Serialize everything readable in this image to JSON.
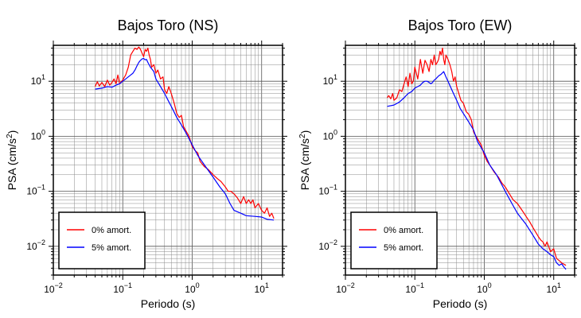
{
  "chart_data": [
    {
      "type": "line",
      "title": "Bajos Toro (NS)",
      "xlabel": "Periodo (s)",
      "ylabel_main": "PSA (cm/s",
      "ylabel_sup": "2",
      "ylabel_close": ")",
      "x_scale": "log",
      "y_scale": "log",
      "xlim": [
        0.01,
        20
      ],
      "ylim": [
        0.003,
        45
      ],
      "grid": true,
      "legend_position": "bottom-left",
      "x_ticks": [
        {
          "value": 0.01,
          "base": "10",
          "exp": "−2"
        },
        {
          "value": 0.1,
          "base": "10",
          "exp": "−1"
        },
        {
          "value": 1,
          "base": "10",
          "exp": "0"
        },
        {
          "value": 10,
          "base": "10",
          "exp": "1"
        }
      ],
      "y_ticks": [
        {
          "value": 0.01,
          "base": "10",
          "exp": "−2"
        },
        {
          "value": 0.1,
          "base": "10",
          "exp": "−1"
        },
        {
          "value": 1,
          "base": "10",
          "exp": "0"
        },
        {
          "value": 10,
          "base": "10",
          "exp": "1"
        }
      ],
      "series": [
        {
          "name": "0% amort.",
          "color": "#ff0000",
          "x": [
            0.04,
            0.043,
            0.046,
            0.05,
            0.055,
            0.06,
            0.065,
            0.07,
            0.075,
            0.08,
            0.085,
            0.09,
            0.1,
            0.11,
            0.12,
            0.13,
            0.14,
            0.15,
            0.16,
            0.17,
            0.18,
            0.19,
            0.2,
            0.21,
            0.22,
            0.23,
            0.24,
            0.25,
            0.26,
            0.28,
            0.3,
            0.32,
            0.35,
            0.38,
            0.4,
            0.43,
            0.46,
            0.5,
            0.55,
            0.6,
            0.65,
            0.7,
            0.75,
            0.8,
            0.9,
            1.0,
            1.1,
            1.2,
            1.3,
            1.5,
            1.7,
            2.0,
            2.3,
            2.6,
            3.0,
            3.3,
            3.6,
            4.0,
            4.5,
            5.0,
            5.5,
            6.0,
            6.5,
            7.0,
            7.5,
            8.0,
            9.0,
            10.0,
            11.0,
            12.0,
            13.0,
            14.0,
            15.0
          ],
          "y": [
            8,
            9.8,
            8.2,
            9.5,
            8,
            10.5,
            8.5,
            9.5,
            11,
            9,
            13,
            9,
            10.5,
            13,
            18,
            30,
            35,
            40,
            38,
            42,
            38,
            32,
            28,
            38,
            35,
            40,
            30,
            25,
            18,
            20,
            14,
            16,
            11,
            12,
            7,
            6,
            8,
            6,
            4,
            2.6,
            2.2,
            2.4,
            1.5,
            1.3,
            1.0,
            0.65,
            0.55,
            0.5,
            0.35,
            0.28,
            0.25,
            0.2,
            0.17,
            0.15,
            0.12,
            0.1,
            0.1,
            0.09,
            0.075,
            0.06,
            0.08,
            0.06,
            0.07,
            0.06,
            0.07,
            0.05,
            0.06,
            0.045,
            0.04,
            0.05,
            0.035,
            0.04,
            0.032
          ]
        },
        {
          "name": "5% amort.",
          "color": "#0000ff",
          "x": [
            0.04,
            0.05,
            0.06,
            0.07,
            0.08,
            0.09,
            0.1,
            0.11,
            0.12,
            0.13,
            0.14,
            0.15,
            0.16,
            0.17,
            0.18,
            0.19,
            0.2,
            0.21,
            0.22,
            0.23,
            0.25,
            0.28,
            0.3,
            0.35,
            0.4,
            0.45,
            0.5,
            0.6,
            0.7,
            0.8,
            1.0,
            1.2,
            1.5,
            2.0,
            2.5,
            3.0,
            3.5,
            4.0,
            5.0,
            6.0,
            8.0,
            10.0,
            12.0,
            15.0
          ],
          "y": [
            7.2,
            7.5,
            8,
            7.8,
            8.5,
            9,
            10,
            11,
            12,
            13,
            14,
            16,
            19,
            22,
            24,
            25.5,
            26,
            24.5,
            25,
            22,
            18,
            15,
            11,
            8,
            6,
            4.5,
            3.5,
            2.2,
            1.6,
            1.2,
            0.7,
            0.45,
            0.3,
            0.18,
            0.12,
            0.09,
            0.06,
            0.045,
            0.04,
            0.036,
            0.035,
            0.034,
            0.031,
            0.03
          ]
        }
      ]
    },
    {
      "type": "line",
      "title": "Bajos Toro (EW)",
      "xlabel": "Periodo (s)",
      "ylabel_main": "PSA (cm/s",
      "ylabel_sup": "2",
      "ylabel_close": ")",
      "x_scale": "log",
      "y_scale": "log",
      "xlim": [
        0.01,
        20
      ],
      "ylim": [
        0.003,
        45
      ],
      "grid": true,
      "legend_position": "bottom-left",
      "x_ticks": [
        {
          "value": 0.01,
          "base": "10",
          "exp": "−2"
        },
        {
          "value": 0.1,
          "base": "10",
          "exp": "−1"
        },
        {
          "value": 1,
          "base": "10",
          "exp": "0"
        },
        {
          "value": 10,
          "base": "10",
          "exp": "1"
        }
      ],
      "y_ticks": [
        {
          "value": 0.01,
          "base": "10",
          "exp": "−2"
        },
        {
          "value": 0.1,
          "base": "10",
          "exp": "−1"
        },
        {
          "value": 1,
          "base": "10",
          "exp": "0"
        },
        {
          "value": 10,
          "base": "10",
          "exp": "1"
        }
      ],
      "series": [
        {
          "name": "0% amort.",
          "color": "#ff0000",
          "x": [
            0.04,
            0.042,
            0.045,
            0.048,
            0.05,
            0.055,
            0.06,
            0.065,
            0.07,
            0.075,
            0.08,
            0.085,
            0.09,
            0.095,
            0.1,
            0.11,
            0.12,
            0.13,
            0.14,
            0.15,
            0.16,
            0.17,
            0.18,
            0.19,
            0.2,
            0.21,
            0.22,
            0.23,
            0.24,
            0.25,
            0.26,
            0.27,
            0.28,
            0.3,
            0.32,
            0.34,
            0.36,
            0.38,
            0.4,
            0.43,
            0.46,
            0.5,
            0.55,
            0.6,
            0.65,
            0.7,
            0.8,
            0.9,
            1.0,
            1.1,
            1.2,
            1.4,
            1.6,
            1.8,
            2.0,
            2.3,
            2.6,
            3.0,
            3.5,
            4.0,
            4.5,
            5.0,
            5.5,
            6.0,
            6.5,
            7.0,
            7.5,
            8.0,
            9.0,
            10.0,
            11.0,
            12.0,
            13.0,
            15.0
          ],
          "y": [
            5,
            5.5,
            4.8,
            6,
            4.5,
            5,
            7,
            6.5,
            9,
            12,
            8,
            14,
            9,
            10,
            18,
            11,
            25,
            14,
            24,
            20,
            15,
            25,
            20,
            30,
            20,
            22,
            25,
            35,
            30,
            40,
            25,
            20,
            30,
            25,
            20,
            15,
            10,
            12,
            8,
            6,
            4.5,
            4,
            2.8,
            2.5,
            2,
            1.2,
            0.9,
            0.7,
            0.45,
            0.35,
            0.3,
            0.22,
            0.18,
            0.14,
            0.12,
            0.09,
            0.07,
            0.06,
            0.045,
            0.035,
            0.028,
            0.022,
            0.018,
            0.015,
            0.013,
            0.012,
            0.01,
            0.012,
            0.008,
            0.009,
            0.006,
            0.0055,
            0.005,
            0.0045
          ]
        },
        {
          "name": "5% amort.",
          "color": "#0000ff",
          "x": [
            0.04,
            0.05,
            0.06,
            0.07,
            0.08,
            0.09,
            0.1,
            0.11,
            0.12,
            0.13,
            0.14,
            0.15,
            0.16,
            0.17,
            0.18,
            0.19,
            0.2,
            0.22,
            0.24,
            0.26,
            0.28,
            0.3,
            0.35,
            0.4,
            0.45,
            0.5,
            0.6,
            0.7,
            0.8,
            1.0,
            1.2,
            1.5,
            2.0,
            2.5,
            3.0,
            4.0,
            5.0,
            6.0,
            7.0,
            8.0,
            9.0,
            10.0,
            11.0,
            12.0,
            13.0,
            14.0,
            15.0
          ],
          "y": [
            3.5,
            3.7,
            4.2,
            5,
            6,
            6.5,
            7.5,
            8,
            8.5,
            9.5,
            10,
            10,
            9.5,
            9,
            9.5,
            10.5,
            11,
            12.5,
            13.5,
            15,
            12,
            10,
            6.5,
            4.5,
            3.2,
            2.6,
            1.8,
            1.3,
            0.8,
            0.5,
            0.3,
            0.2,
            0.1,
            0.06,
            0.04,
            0.025,
            0.016,
            0.011,
            0.009,
            0.008,
            0.007,
            0.0065,
            0.005,
            0.0045,
            0.0048,
            0.0042,
            0.0038
          ]
        }
      ]
    }
  ]
}
